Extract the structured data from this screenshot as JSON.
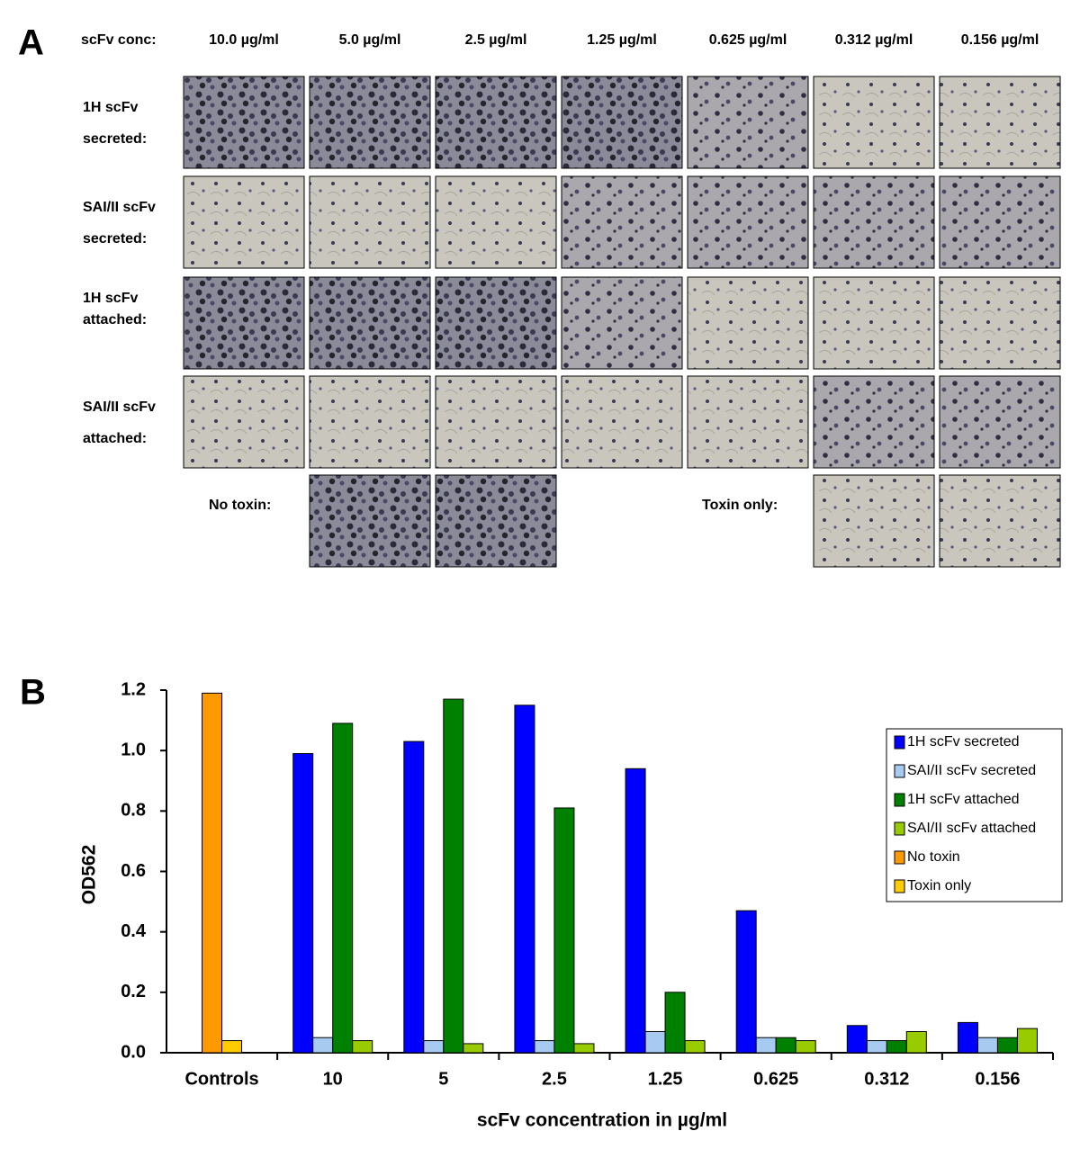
{
  "panel_a": {
    "panel_label": "A",
    "header_label": "scFv conc:",
    "columns": [
      "10.0 µg/ml",
      "5.0 µg/ml",
      "2.5 µg/ml",
      "1.25 µg/ml",
      "0.625 µg/ml",
      "0.312 µg/ml",
      "0.156 µg/ml"
    ],
    "rows": [
      {
        "label": [
          "1H scFv",
          "secreted:"
        ]
      },
      {
        "label": [
          "SAI/II scFv",
          "secreted:"
        ]
      },
      {
        "label": [
          "1H scFv",
          "attached:"
        ]
      },
      {
        "label": [
          "SAI/II scFv",
          "attached:"
        ]
      }
    ],
    "controls": [
      {
        "label": "No toxin:"
      },
      {
        "label": "Toxin only:"
      }
    ]
  },
  "chart_data": {
    "type": "bar",
    "panel_label": "B",
    "x_label": "scFv concentration in µg/ml",
    "y_label": "OD562",
    "categories": [
      "Controls",
      "10",
      "5",
      "2.5",
      "1.25",
      "0.625",
      "0.312",
      "0.156"
    ],
    "series": [
      {
        "name": "1H scFv secreted",
        "color": "#0000ff",
        "values": [
          null,
          0.99,
          1.03,
          1.15,
          0.94,
          0.47,
          0.09,
          0.1
        ]
      },
      {
        "name": "SAI/II scFv secreted",
        "color": "#a6caf0",
        "values": [
          null,
          0.05,
          0.04,
          0.04,
          0.07,
          0.05,
          0.04,
          0.05
        ]
      },
      {
        "name": "1H scFv attached",
        "color": "#008000",
        "values": [
          null,
          1.09,
          1.17,
          0.81,
          0.2,
          0.05,
          0.04,
          0.05
        ]
      },
      {
        "name": "SAI/II scFv attached",
        "color": "#99cc00",
        "values": [
          null,
          0.04,
          0.03,
          0.03,
          0.04,
          0.04,
          0.07,
          0.08
        ]
      },
      {
        "name": "No toxin",
        "color": "#ff9900",
        "values": [
          1.19,
          null,
          null,
          null,
          null,
          null,
          null,
          null
        ]
      },
      {
        "name": "Toxin only",
        "color": "#ffcc00",
        "values": [
          0.04,
          null,
          null,
          null,
          null,
          null,
          null,
          null
        ]
      }
    ],
    "ylim": [
      0,
      1.2
    ],
    "yticks": [
      {
        "value": 0,
        "label": "0.0"
      },
      0.2,
      0.4,
      0.6,
      0.8,
      {
        "value": 1,
        "label": "1.0"
      },
      1.2
    ],
    "legend": "right"
  }
}
